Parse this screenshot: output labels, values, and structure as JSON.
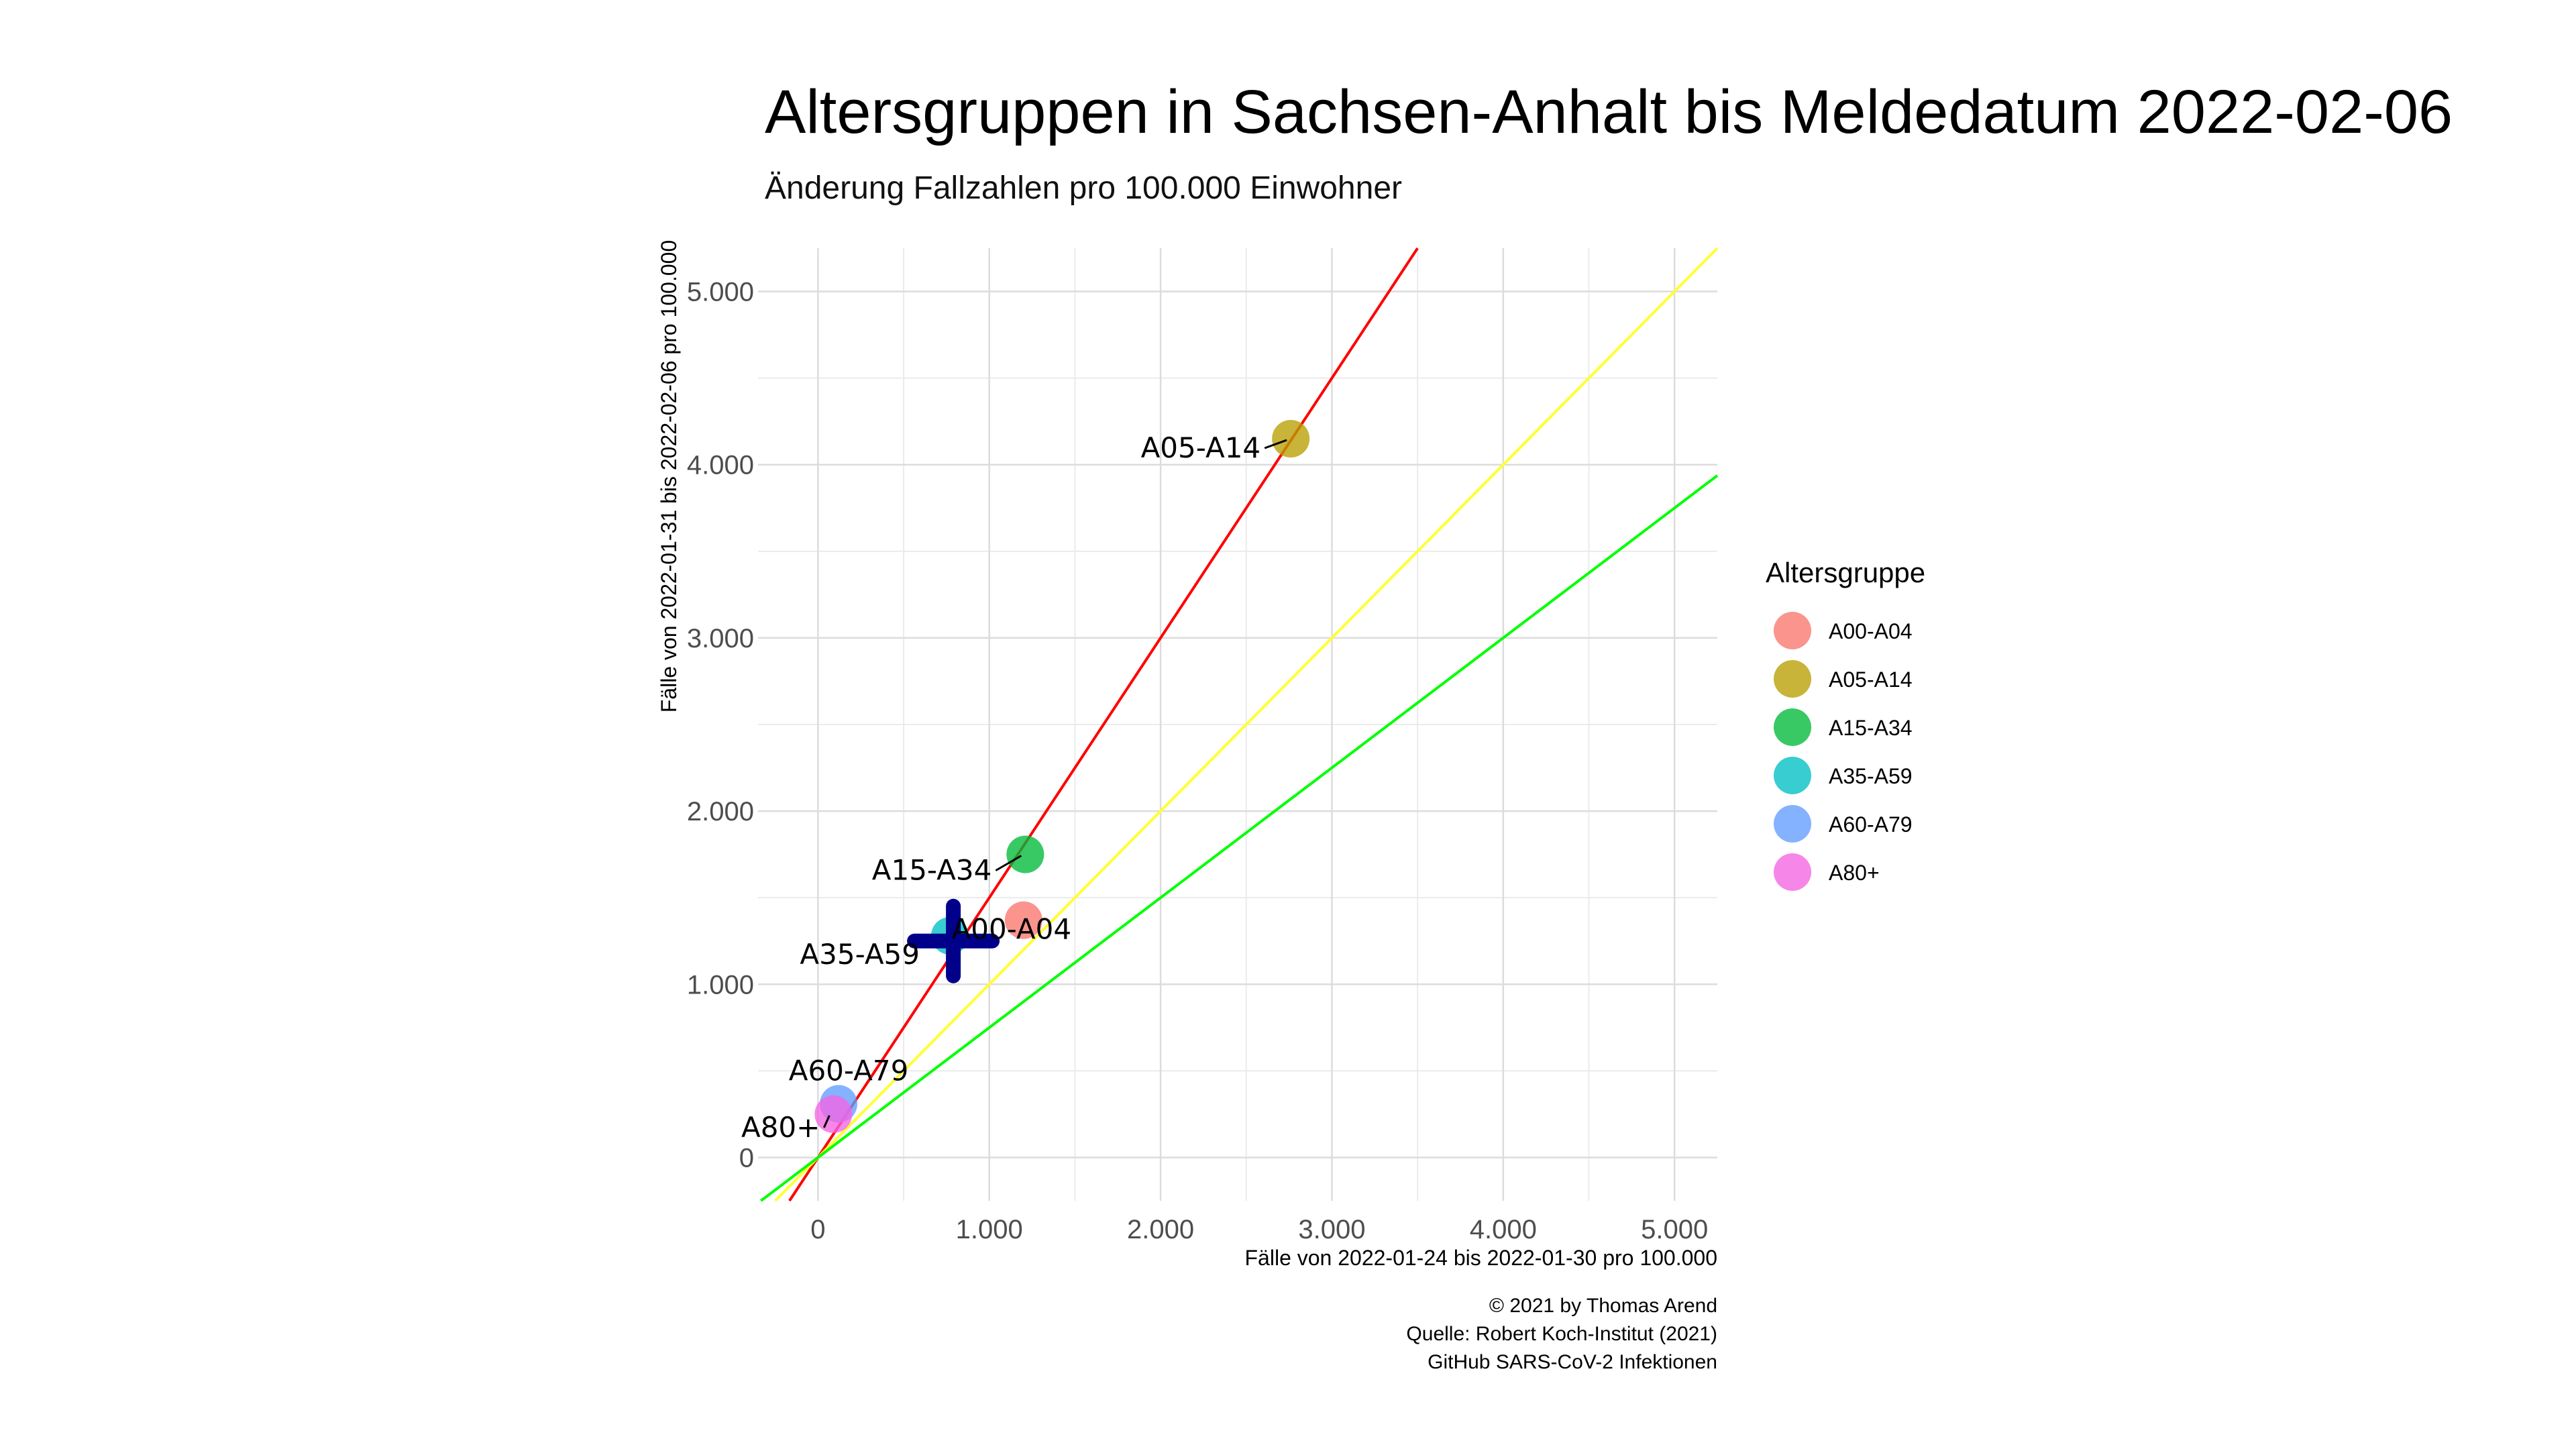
{
  "title": "Altersgruppen in Sachsen-Anhalt bis Meldedatum 2022-02-06",
  "subtitle": "Änderung Fallzahlen pro 100.000 Einwohner",
  "caption": [
    "© 2021 by Thomas Arend",
    "Quelle: Robert Koch-Institut (2021)",
    "GitHub SARS-CoV-2 Infektionen"
  ],
  "chart_data": {
    "type": "scatter",
    "xlabel": "Fälle von 2022-01-24 bis 2022-01-30 pro 100.000",
    "ylabel": "Fälle von 2022-01-31 bis 2022-02-06 pro 100.000",
    "xlim": [
      -350,
      5250
    ],
    "ylim": [
      -250,
      5250
    ],
    "x_ticks": [
      {
        "value": 0,
        "label": "0"
      },
      {
        "value": 1000,
        "label": "1.000"
      },
      {
        "value": 2000,
        "label": "2.000"
      },
      {
        "value": 3000,
        "label": "3.000"
      },
      {
        "value": 4000,
        "label": "4.000"
      },
      {
        "value": 5000,
        "label": "5.000"
      }
    ],
    "y_ticks": [
      {
        "value": 0,
        "label": "0"
      },
      {
        "value": 1000,
        "label": "1.000"
      },
      {
        "value": 2000,
        "label": "2.000"
      },
      {
        "value": 3000,
        "label": "3.000"
      },
      {
        "value": 4000,
        "label": "4.000"
      },
      {
        "value": 5000,
        "label": "5.000"
      }
    ],
    "grid": true,
    "reference_lines": [
      {
        "slope": 1.5,
        "color": "#ff0000"
      },
      {
        "slope": 1.0,
        "color": "#ffff33"
      },
      {
        "slope": 0.75,
        "color": "#00ff00"
      }
    ],
    "points": [
      {
        "group": "A00-A04",
        "x": 1200,
        "y": 1370,
        "color": "#F8766D",
        "label": "A00-A04"
      },
      {
        "group": "A05-A14",
        "x": 2760,
        "y": 4150,
        "color": "#B79F00",
        "label": "A05-A14"
      },
      {
        "group": "A15-A34",
        "x": 1210,
        "y": 1750,
        "color": "#00BA38",
        "label": "A15-A34"
      },
      {
        "group": "A35-A59",
        "x": 770,
        "y": 1280,
        "color": "#00BFC4",
        "label": "A35-A59"
      },
      {
        "group": "A60-A79",
        "x": 120,
        "y": 310,
        "color": "#619CFF",
        "label": "A60-A79"
      },
      {
        "group": "A80+",
        "x": 90,
        "y": 250,
        "color": "#F564E3",
        "label": "A80+"
      }
    ],
    "mean_marker": {
      "x": 790,
      "y": 1250,
      "color": "#00008B"
    },
    "legend": {
      "title": "Altersgruppe",
      "position": "right",
      "entries": [
        {
          "label": "A00-A04",
          "color": "#F8766D"
        },
        {
          "label": "A05-A14",
          "color": "#B79F00"
        },
        {
          "label": "A15-A34",
          "color": "#00BA38"
        },
        {
          "label": "A35-A59",
          "color": "#00BFC4"
        },
        {
          "label": "A60-A79",
          "color": "#619CFF"
        },
        {
          "label": "A80+",
          "color": "#F564E3"
        }
      ]
    }
  }
}
